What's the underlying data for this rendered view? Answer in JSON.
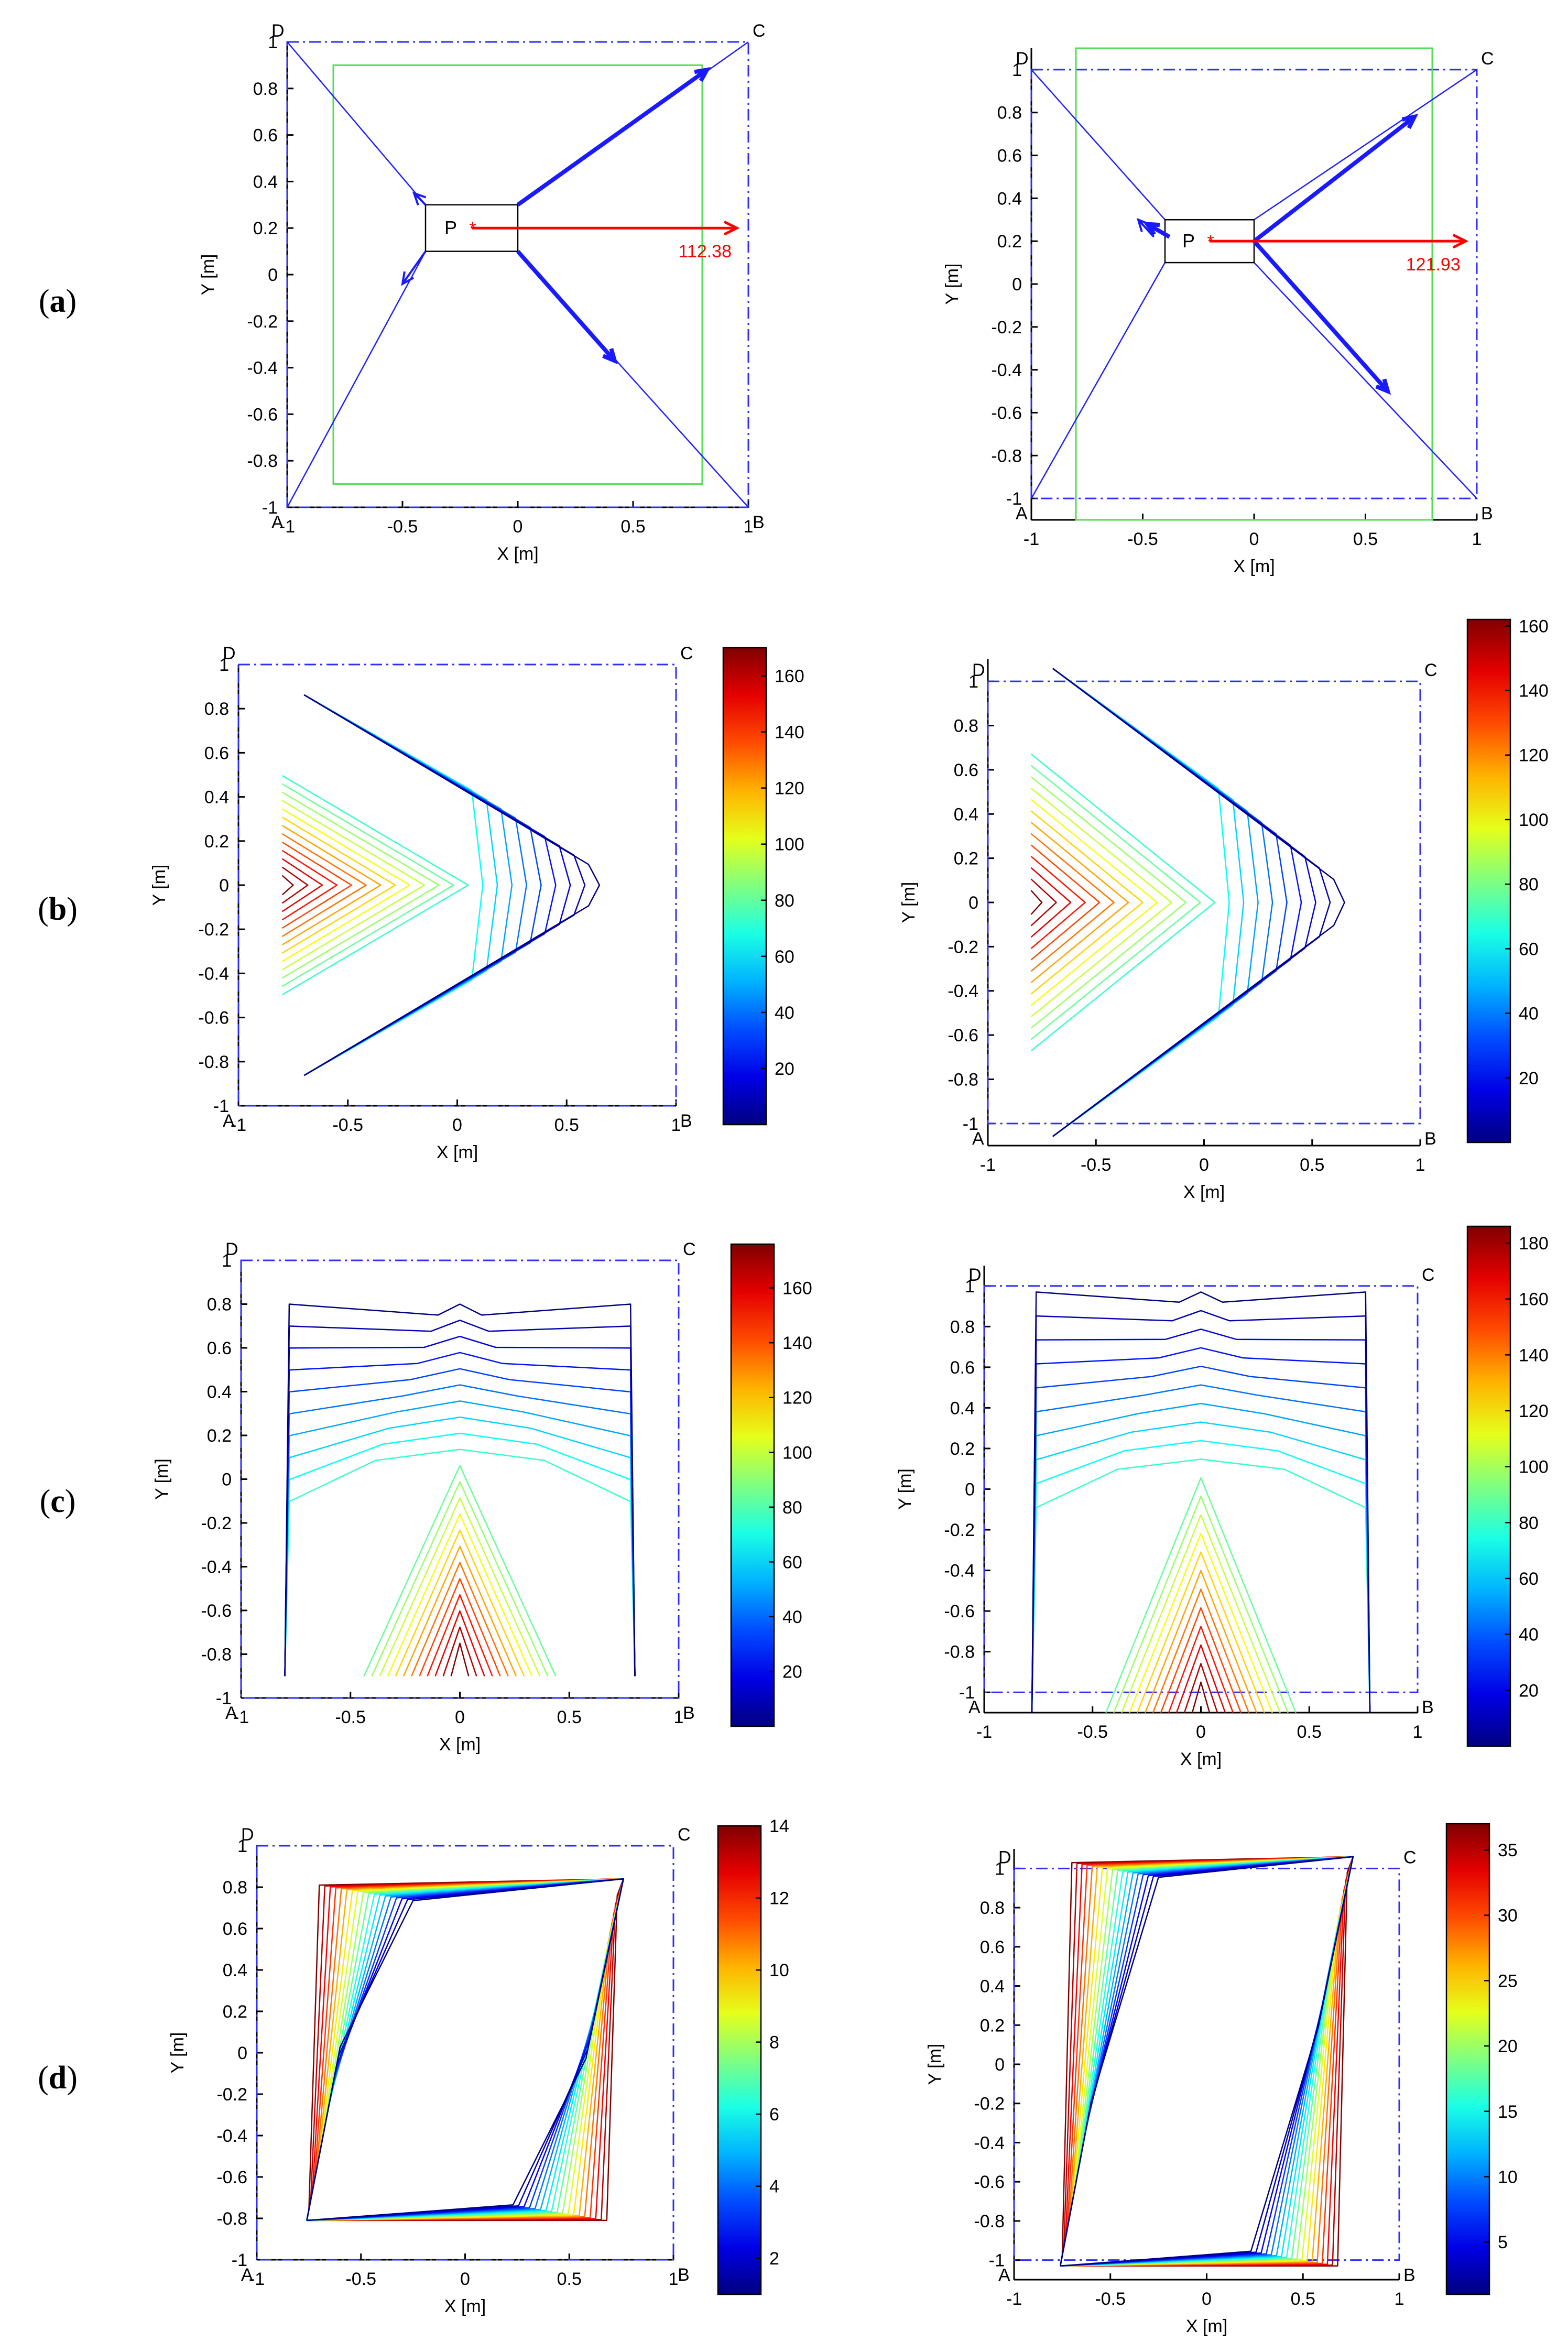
{
  "figure": {
    "row_labels": [
      {
        "prefix": "(",
        "letter": "a",
        "suffix": ")"
      },
      {
        "prefix": "(",
        "letter": "b",
        "suffix": ")"
      },
      {
        "prefix": "(",
        "letter": "c",
        "suffix": ")"
      },
      {
        "prefix": "(",
        "letter": "d",
        "suffix": ")"
      }
    ]
  },
  "chart_data": [
    {
      "id": "a-left",
      "type": "line",
      "row": "a",
      "xlabel": "X [m]",
      "ylabel": "Y [m]",
      "xlim": [
        -1,
        1
      ],
      "ylim": [
        -1,
        1
      ],
      "xticks": [
        "-1",
        "-0.5",
        "0",
        "0.5",
        "1"
      ],
      "yticks": [
        "-1",
        "-0.8",
        "-0.6",
        "-0.4",
        "-0.2",
        "0",
        "0.2",
        "0.4",
        "0.6",
        "0.8",
        "1"
      ],
      "corners": {
        "A": [
          -1,
          -1
        ],
        "B": [
          1,
          -1
        ],
        "C": [
          1,
          1
        ],
        "D": [
          -1,
          1
        ]
      },
      "workspace": {
        "x": [
          -0.8,
          0.8
        ],
        "y": [
          -0.9,
          0.9
        ]
      },
      "platform": {
        "label": "P",
        "center": [
          -0.2,
          0.2
        ],
        "x": [
          -0.4,
          0.0
        ],
        "y": [
          0.1,
          0.3
        ]
      },
      "cable_forces": [
        {
          "from": [
            -0.4,
            0.3
          ],
          "to": [
            -0.45,
            0.35
          ],
          "corner": "D",
          "weight": "thin"
        },
        {
          "from": [
            0.0,
            0.3
          ],
          "to": [
            0.82,
            0.88
          ],
          "corner": "C",
          "weight": "thick"
        },
        {
          "from": [
            -0.4,
            0.1
          ],
          "to": [
            -0.5,
            -0.04
          ],
          "corner": "A",
          "weight": "thin"
        },
        {
          "from": [
            0.0,
            0.1
          ],
          "to": [
            0.42,
            -0.37
          ],
          "corner": "B",
          "weight": "thick"
        }
      ],
      "resultant": {
        "from": [
          -0.2,
          0.2
        ],
        "to": [
          0.95,
          0.2
        ],
        "value": "112.38"
      }
    },
    {
      "id": "a-right",
      "type": "line",
      "row": "a",
      "xlabel": "X [m]",
      "ylabel": "Y [m]",
      "xlim": [
        -1,
        1
      ],
      "ylim": [
        -1.1,
        1.1
      ],
      "xticks": [
        "-1",
        "-0.5",
        "0",
        "0.5",
        "1"
      ],
      "yticks": [
        "-1",
        "-0.8",
        "-0.6",
        "-0.4",
        "-0.2",
        "0",
        "0.2",
        "0.4",
        "0.6",
        "0.8",
        "1"
      ],
      "corners": {
        "A": [
          -1,
          -1
        ],
        "B": [
          1,
          -1
        ],
        "C": [
          1,
          1
        ],
        "D": [
          -1,
          1
        ]
      },
      "workspace": {
        "x": [
          -0.8,
          0.8
        ],
        "y": [
          -1.1,
          1.1
        ]
      },
      "platform": {
        "label": "P",
        "center": [
          -0.2,
          0.2
        ],
        "x": [
          -0.4,
          0.0
        ],
        "y": [
          0.1,
          0.3
        ]
      },
      "cable_forces": [
        {
          "from": [
            -0.45,
            0.22
          ],
          "to": [
            -0.52,
            0.3
          ],
          "corner": "D",
          "weight": "thin"
        },
        {
          "from": [
            0.0,
            0.2
          ],
          "to": [
            0.72,
            0.78
          ],
          "corner": "C",
          "weight": "thick"
        },
        {
          "from": [
            -0.38,
            0.22
          ],
          "to": [
            -0.48,
            0.28
          ],
          "corner": "A",
          "weight": "thick"
        },
        {
          "from": [
            0.0,
            0.2
          ],
          "to": [
            0.6,
            -0.5
          ],
          "corner": "B",
          "weight": "thick"
        }
      ],
      "resultant": {
        "from": [
          -0.2,
          0.2
        ],
        "to": [
          0.95,
          0.2
        ],
        "value": "121.93"
      }
    },
    {
      "id": "b-left",
      "type": "contour",
      "row": "b",
      "pattern": "left-wedge",
      "xlabel": "X [m]",
      "ylabel": "Y [m]",
      "xlim": [
        -1,
        1
      ],
      "ylim": [
        -1,
        1
      ],
      "xticks": [
        "-1",
        "-0.5",
        "0",
        "0.5",
        "1"
      ],
      "yticks": [
        "-1",
        "-0.8",
        "-0.6",
        "-0.4",
        "-0.2",
        "0",
        "0.2",
        "0.4",
        "0.6",
        "0.8",
        "1"
      ],
      "corners": {
        "A": [
          -1,
          -1
        ],
        "B": [
          1,
          -1
        ],
        "C": [
          1,
          1
        ],
        "D": [
          -1,
          1
        ]
      },
      "region": {
        "x": [
          -0.8,
          0.75
        ],
        "y": [
          -0.88,
          0.88
        ]
      },
      "levels": 22,
      "colorbar": {
        "min": 0,
        "max": 170,
        "ticks": [
          "20",
          "40",
          "60",
          "80",
          "100",
          "120",
          "140",
          "160"
        ]
      }
    },
    {
      "id": "b-right",
      "type": "contour",
      "row": "b",
      "pattern": "left-wedge-wide",
      "xlabel": "X [m]",
      "ylabel": "Y [m]",
      "xlim": [
        -1,
        1
      ],
      "ylim": [
        -1.1,
        1.1
      ],
      "xticks": [
        "-1",
        "-0.5",
        "0",
        "0.5",
        "1"
      ],
      "yticks": [
        "-1",
        "-0.8",
        "-0.6",
        "-0.4",
        "-0.2",
        "0",
        "0.2",
        "0.4",
        "0.6",
        "0.8",
        "1"
      ],
      "corners": {
        "A": [
          -1,
          -1
        ],
        "B": [
          1,
          -1
        ],
        "C": [
          1,
          1
        ],
        "D": [
          -1,
          1
        ]
      },
      "region": {
        "x": [
          -0.8,
          0.75
        ],
        "y": [
          -1.08,
          1.08
        ]
      },
      "levels": 22,
      "colorbar": {
        "min": 0,
        "max": 162,
        "ticks": [
          "20",
          "40",
          "60",
          "80",
          "100",
          "120",
          "140",
          "160"
        ]
      }
    },
    {
      "id": "c-left",
      "type": "contour",
      "row": "c",
      "pattern": "bottom-wedge",
      "xlabel": "X [m]",
      "ylabel": "Y [m]",
      "xlim": [
        -1,
        1
      ],
      "ylim": [
        -1,
        1
      ],
      "xticks": [
        "-1",
        "-0.5",
        "0",
        "0.5",
        "1"
      ],
      "yticks": [
        "-1",
        "-0.8",
        "-0.6",
        "-0.4",
        "-0.2",
        "0",
        "0.2",
        "0.4",
        "0.6",
        "0.8",
        "1"
      ],
      "corners": {
        "A": [
          -1,
          -1
        ],
        "B": [
          1,
          -1
        ],
        "C": [
          1,
          1
        ],
        "D": [
          -1,
          1
        ]
      },
      "region": {
        "x": [
          -0.8,
          0.8
        ],
        "y": [
          -0.9,
          0.85
        ]
      },
      "levels": 22,
      "colorbar": {
        "min": 0,
        "max": 176,
        "ticks": [
          "20",
          "40",
          "60",
          "80",
          "100",
          "120",
          "140",
          "160"
        ]
      }
    },
    {
      "id": "c-right",
      "type": "contour",
      "row": "c",
      "pattern": "bottom-wedge",
      "xlabel": "X [m]",
      "ylabel": "Y [m]",
      "xlim": [
        -1,
        1
      ],
      "ylim": [
        -1.1,
        1.1
      ],
      "xticks": [
        "-1",
        "-0.5",
        "0",
        "0.5",
        "1"
      ],
      "yticks": [
        "-1",
        "-0.8",
        "-0.6",
        "-0.4",
        "-0.2",
        "0",
        "0.2",
        "0.4",
        "0.6",
        "0.8",
        "1"
      ],
      "corners": {
        "A": [
          -1,
          -1
        ],
        "B": [
          1,
          -1
        ],
        "C": [
          1,
          1
        ],
        "D": [
          -1,
          1
        ]
      },
      "region": {
        "x": [
          -0.78,
          0.78
        ],
        "y": [
          -1.1,
          1.02
        ]
      },
      "levels": 22,
      "colorbar": {
        "min": 0,
        "max": 186,
        "ticks": [
          "20",
          "40",
          "60",
          "80",
          "100",
          "120",
          "140",
          "160",
          "180"
        ]
      }
    },
    {
      "id": "d-left",
      "type": "contour",
      "row": "d",
      "pattern": "diagonal",
      "xlabel": "X [m]",
      "ylabel": "Y [m]",
      "xlim": [
        -1,
        1
      ],
      "ylim": [
        -1,
        1
      ],
      "xticks": [
        "-1",
        "-0.5",
        "0",
        "0.5",
        "1"
      ],
      "yticks": [
        "-1",
        "-0.8",
        "-0.6",
        "-0.4",
        "-0.2",
        "0",
        "0.2",
        "0.4",
        "0.6",
        "0.8",
        "1"
      ],
      "corners": {
        "A": [
          -1,
          -1
        ],
        "B": [
          1,
          -1
        ],
        "C": [
          1,
          1
        ],
        "D": [
          -1,
          1
        ]
      },
      "region": {
        "x": [
          -0.8,
          0.78
        ],
        "y": [
          -0.86,
          0.86
        ]
      },
      "levels": 18,
      "colorbar": {
        "min": 1,
        "max": 14,
        "ticks": [
          "2",
          "4",
          "6",
          "8",
          "10",
          "12",
          "14"
        ]
      }
    },
    {
      "id": "d-right",
      "type": "contour",
      "row": "d",
      "pattern": "diagonal",
      "xlabel": "X [m]",
      "ylabel": "Y [m]",
      "xlim": [
        -1,
        1
      ],
      "ylim": [
        -1.1,
        1.1
      ],
      "xticks": [
        "-1",
        "-0.5",
        "0",
        "0.5",
        "1"
      ],
      "yticks": [
        "-1",
        "-0.8",
        "-0.6",
        "-0.4",
        "-0.2",
        "0",
        "0.2",
        "0.4",
        "0.6",
        "0.8",
        "1"
      ],
      "corners": {
        "A": [
          -1,
          -1
        ],
        "B": [
          1,
          -1
        ],
        "C": [
          1,
          1
        ],
        "D": [
          -1,
          1
        ]
      },
      "region": {
        "x": [
          -0.8,
          0.78
        ],
        "y": [
          -1.08,
          1.08
        ]
      },
      "levels": 18,
      "colorbar": {
        "min": 1,
        "max": 37,
        "ticks": [
          "5",
          "10",
          "15",
          "20",
          "25",
          "30",
          "35"
        ]
      }
    }
  ]
}
